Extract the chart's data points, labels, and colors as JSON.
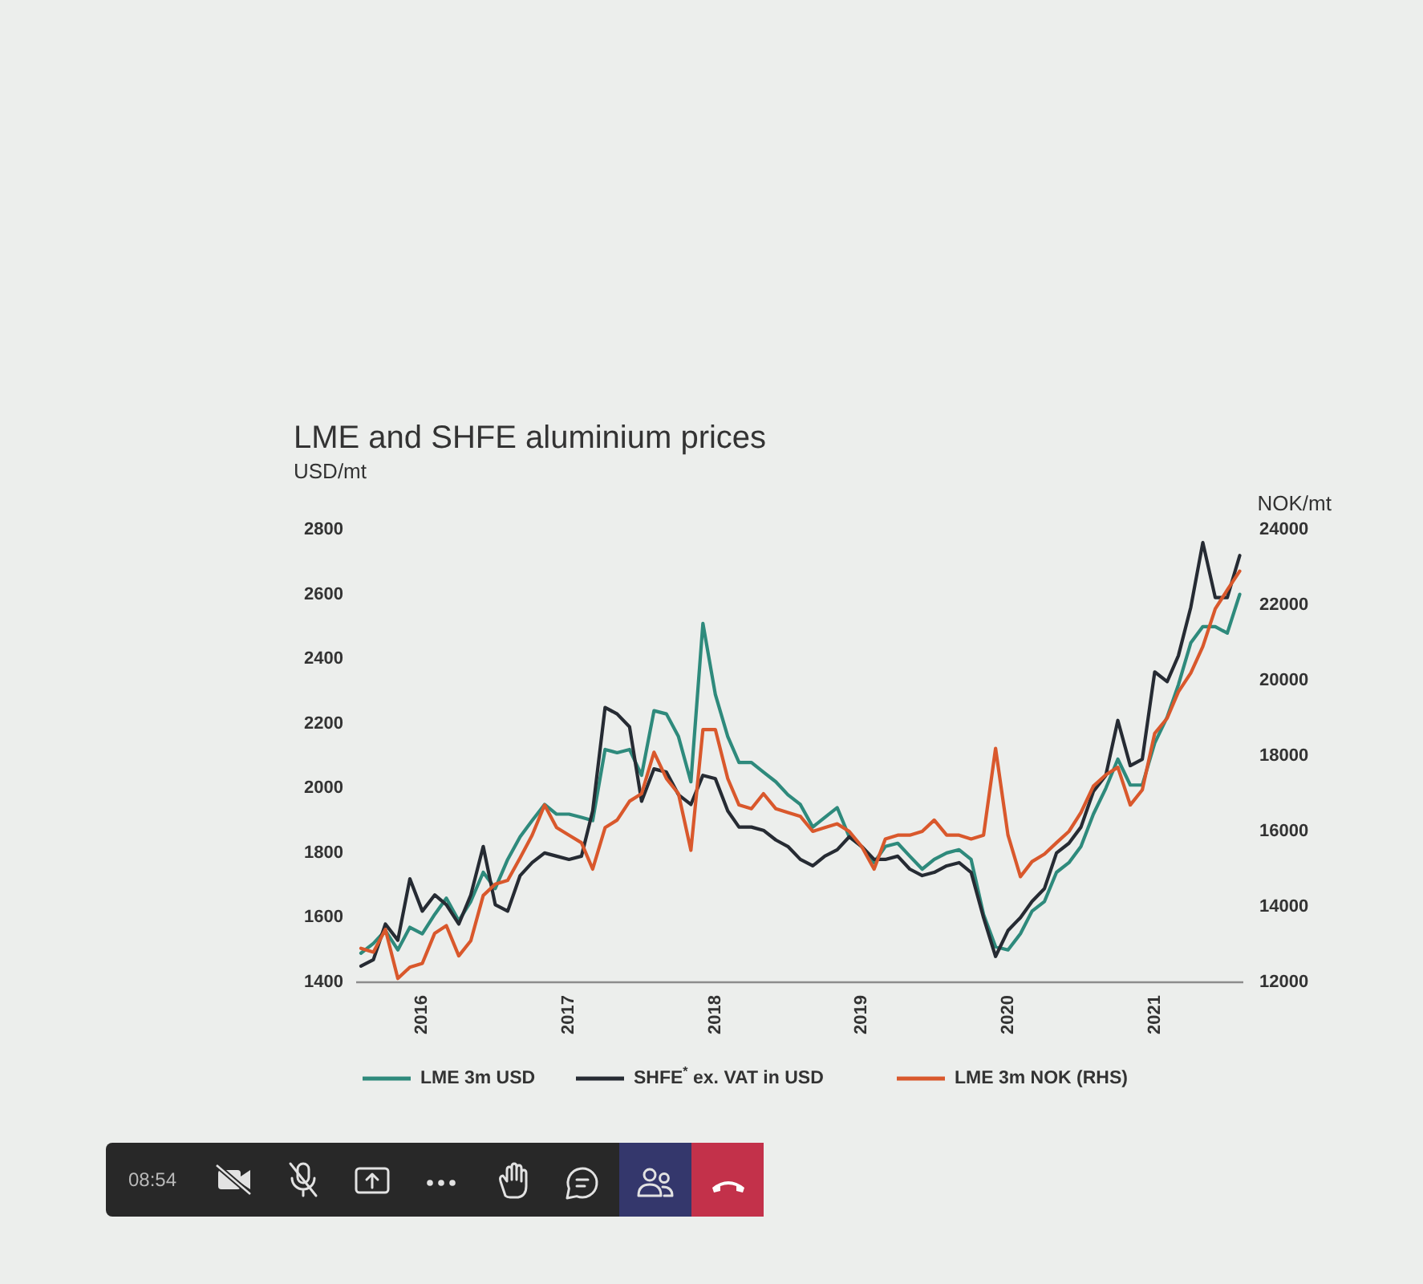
{
  "chart_data": {
    "type": "line",
    "title": "LME and SHFE aluminium prices",
    "ylabel": "USD/mt",
    "y2label": "NOK/mt",
    "annotations": [
      "08:54"
    ],
    "x": [
      "2015-08",
      "2015-09",
      "2015-10",
      "2015-11",
      "2015-12",
      "2016-01",
      "2016-02",
      "2016-03",
      "2016-04",
      "2016-05",
      "2016-06",
      "2016-07",
      "2016-08",
      "2016-09",
      "2016-10",
      "2016-11",
      "2016-12",
      "2017-01",
      "2017-02",
      "2017-03",
      "2017-04",
      "2017-05",
      "2017-06",
      "2017-07",
      "2017-08",
      "2017-09",
      "2017-10",
      "2017-11",
      "2017-12",
      "2018-01",
      "2018-02",
      "2018-03",
      "2018-04",
      "2018-05",
      "2018-06",
      "2018-07",
      "2018-08",
      "2018-09",
      "2018-10",
      "2018-11",
      "2018-12",
      "2019-01",
      "2019-02",
      "2019-03",
      "2019-04",
      "2019-05",
      "2019-06",
      "2019-07",
      "2019-08",
      "2019-09",
      "2019-10",
      "2019-11",
      "2019-12",
      "2020-01",
      "2020-02",
      "2020-03",
      "2020-04",
      "2020-05",
      "2020-06",
      "2020-07",
      "2020-08",
      "2020-09",
      "2020-10",
      "2020-11",
      "2020-12",
      "2021-01",
      "2021-02",
      "2021-03",
      "2021-04",
      "2021-05",
      "2021-06",
      "2021-07",
      "2021-08"
    ],
    "xlim": [
      "2015-07-20",
      "2021-08-10"
    ],
    "xticks": [
      "2016",
      "2017",
      "2018",
      "2019",
      "2020",
      "2021"
    ],
    "ylim": [
      1400,
      2800
    ],
    "yticks": [
      1400,
      1600,
      1800,
      2000,
      2200,
      2400,
      2600,
      2800
    ],
    "y2lim": [
      12000,
      24000
    ],
    "y2ticks": [
      12000,
      14000,
      16000,
      18000,
      20000,
      22000,
      24000
    ],
    "legend": "bottom",
    "series": [
      {
        "name": "LME 3m USD",
        "color": "#2e8a7c",
        "values": [
          1490,
          1520,
          1560,
          1500,
          1570,
          1550,
          1610,
          1660,
          1590,
          1650,
          1740,
          1690,
          1780,
          1850,
          1900,
          1950,
          1920,
          1920,
          1910,
          1900,
          2120,
          2110,
          2120,
          2040,
          2240,
          2230,
          2160,
          2020,
          2510,
          2290,
          2160,
          2080,
          2080,
          2050,
          2020,
          1980,
          1950,
          1880,
          1910,
          1940,
          1850,
          1820,
          1770,
          1820,
          1830,
          1790,
          1750,
          1780,
          1800,
          1810,
          1780,
          1610,
          1510,
          1500,
          1550,
          1620,
          1650,
          1740,
          1770,
          1820,
          1920,
          2000,
          2090,
          2010,
          2010,
          2140,
          2220,
          2320,
          2450,
          2500,
          2500,
          2480,
          2600
        ]
      },
      {
        "name": "SHFE$^{*}$ ex. VAT in USD",
        "color": "#262b33",
        "values": [
          1450,
          1470,
          1580,
          1530,
          1720,
          1620,
          1670,
          1640,
          1580,
          1670,
          1820,
          1640,
          1620,
          1730,
          1770,
          1800,
          1790,
          1780,
          1790,
          1930,
          2250,
          2230,
          2190,
          1960,
          2060,
          2050,
          1980,
          1950,
          2040,
          2030,
          1930,
          1880,
          1880,
          1870,
          1840,
          1820,
          1780,
          1760,
          1790,
          1810,
          1850,
          1820,
          1780,
          1780,
          1790,
          1750,
          1730,
          1740,
          1760,
          1770,
          1740,
          1600,
          1480,
          1560,
          1600,
          1650,
          1690,
          1800,
          1830,
          1880,
          1990,
          2040,
          2210,
          2070,
          2090,
          2360,
          2330,
          2410,
          2560,
          2760,
          2590,
          2590,
          2720
        ]
      },
      {
        "name": "LME 3m NOK (RHS)",
        "color": "#d9582c",
        "axis": "y2",
        "values": [
          12900,
          12800,
          13400,
          12100,
          12400,
          12500,
          13300,
          13500,
          12700,
          13100,
          14300,
          14600,
          14700,
          15300,
          15900,
          16700,
          16100,
          15900,
          15700,
          15000,
          16100,
          16300,
          16800,
          17000,
          18100,
          17400,
          17000,
          15500,
          18700,
          18700,
          17400,
          16700,
          16600,
          17000,
          16600,
          16500,
          16400,
          16000,
          16100,
          16200,
          16000,
          15600,
          15000,
          15800,
          15900,
          15900,
          16000,
          16300,
          15900,
          15900,
          15800,
          15900,
          18200,
          15900,
          14800,
          15200,
          15400,
          15700,
          16000,
          16500,
          17200,
          17500,
          17700,
          16700,
          17100,
          18600,
          19000,
          19700,
          20200,
          20900,
          21900,
          22400,
          22900
        ]
      }
    ]
  }
}
